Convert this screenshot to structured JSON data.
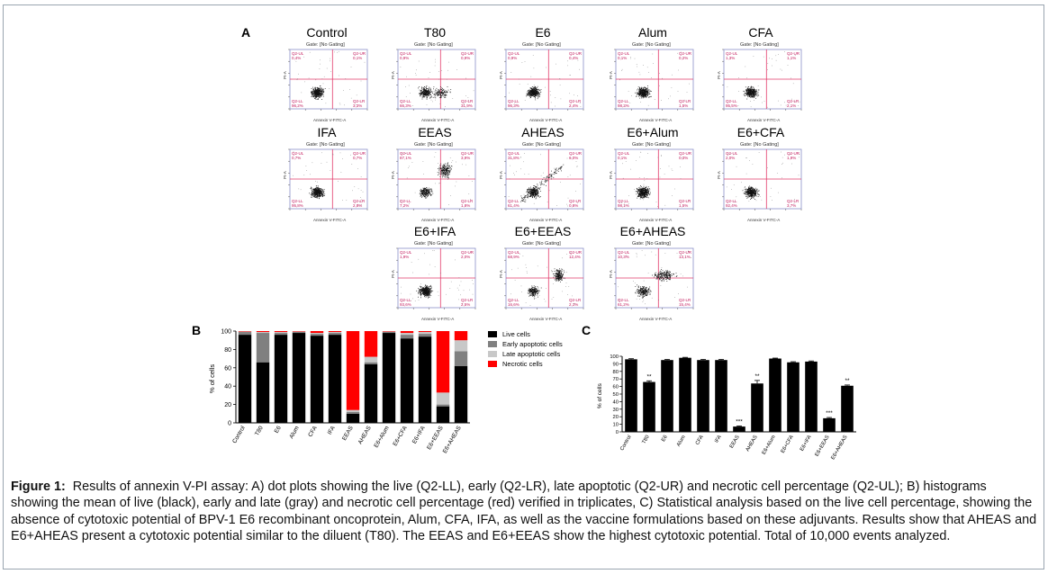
{
  "figure": {
    "panel_labels": {
      "a": "A",
      "b": "B",
      "c": "C"
    },
    "caption_lead": "Figure 1:",
    "caption_text": "Results of annexin V-PI assay: A) dot plots showing the live (Q2-LL), early (Q2-LR), late apoptotic (Q2-UR) and necrotic cell percentage (Q2-UL); B) histograms showing the mean of live (black), early and late (gray) and necrotic cell percentage (red) verified in triplicates, C) Statistical analysis based on the live cell percentage, showing the absence of cytotoxic potential of BPV-1 E6 recombinant oncoprotein, Alum, CFA, IFA, as well as the vaccine formulations based on these adjuvants. Results show that AHEAS and E6+AHEAS present a cytotoxic potential similar to the diluent (T80). The EEAS and E6+EEAS show the highest cytotoxic potential. Total of 10,000 events analyzed."
  },
  "dot_plots": [
    {
      "title": "Control",
      "gate": "Gate: [No Gating]",
      "xlabel": "Annexin V-FITC-A",
      "ylabel": "PI-A",
      "ul": "0,4%",
      "ur": "0,1%",
      "ll": "96,2%",
      "lr": "3,3%",
      "spread": 0
    },
    {
      "title": "T80",
      "gate": "Gate: [No Gating]",
      "xlabel": "Annexin V-FITC-A",
      "ylabel": "PI-A",
      "ul": "0,9%",
      "ur": "0,9%",
      "ll": "66,3%",
      "lr": "31,9%",
      "spread": 1
    },
    {
      "title": "E6",
      "gate": "Gate: [No Gating]",
      "xlabel": "Annexin V-FITC-A",
      "ylabel": "PI-A",
      "ul": "0,9%",
      "ur": "0,4%",
      "ll": "96,3%",
      "lr": "2,4%",
      "spread": 0
    },
    {
      "title": "Alum",
      "gate": "Gate: [No Gating]",
      "xlabel": "Annexin V-FITC-A",
      "ylabel": "PI-A",
      "ul": "0,1%",
      "ur": "0,2%",
      "ll": "98,2%",
      "lr": "1,5%",
      "spread": 0
    },
    {
      "title": "CFA",
      "gate": "Gate: [No Gating]",
      "xlabel": "Annexin V-FITC-A",
      "ylabel": "PI-A",
      "ul": "1,3%",
      "ur": "1,1%",
      "ll": "95,5%",
      "lr": "2,1%",
      "spread": 0
    },
    {
      "title": "IFA",
      "gate": "Gate: [No Gating]",
      "xlabel": "Annexin V-FITC-A",
      "ylabel": "PI-A",
      "ul": "0,7%",
      "ur": "0,7%",
      "ll": "95,8%",
      "lr": "2,8%",
      "spread": 0
    },
    {
      "title": "EEAS",
      "gate": "Gate: [No Gating]",
      "xlabel": "Annexin V-FITC-A",
      "ylabel": "PI-A",
      "ul": "87,1%",
      "ur": "3,9%",
      "ll": "7,2%",
      "lr": "1,8%",
      "spread": 2
    },
    {
      "title": "AHEAS",
      "gate": "Gate: [No Gating]",
      "xlabel": "Annexin V-FITC-A",
      "ylabel": "PI-A",
      "ul": "31,8%",
      "ur": "6,0%",
      "ll": "61,4%",
      "lr": "0,8%",
      "spread": 3
    },
    {
      "title": "E6+Alum",
      "gate": "Gate: [No Gating]",
      "xlabel": "Annexin V-FITC-A",
      "ylabel": "PI-A",
      "ul": "0,1%",
      "ur": "0,3%",
      "ll": "98,1%",
      "lr": "1,5%",
      "spread": 0
    },
    {
      "title": "E6+CFA",
      "gate": "Gate: [No Gating]",
      "xlabel": "Annexin V-FITC-A",
      "ylabel": "PI-A",
      "ul": "2,0%",
      "ur": "1,9%",
      "ll": "92,4%",
      "lr": "3,7%",
      "spread": 0
    },
    {
      "title": "E6+IFA",
      "gate": "Gate: [No Gating]",
      "xlabel": "Annexin V-FITC-A",
      "ylabel": "PI-A",
      "ul": "1,9%",
      "ur": "2,0%",
      "ll": "93,6%",
      "lr": "2,5%",
      "spread": 0
    },
    {
      "title": "E6+EEAS",
      "gate": "Gate: [No Gating]",
      "xlabel": "Annexin V-FITC-A",
      "ylabel": "PI-A",
      "ul": "68,9%",
      "ur": "12,4%",
      "ll": "16,6%",
      "lr": "2,1%",
      "spread": 4
    },
    {
      "title": "E6+AHEAS",
      "gate": "Gate: [No Gating]",
      "xlabel": "Annexin V-FITC-A",
      "ylabel": "PI-A",
      "ul": "10,3%",
      "ur": "13,1%",
      "ll": "61,2%",
      "lr": "15,4%",
      "spread": 5
    }
  ],
  "chart_data": [
    {
      "type": "bar",
      "stacked": true,
      "panel": "B",
      "ylabel": "% of cells",
      "ylim": [
        0,
        100
      ],
      "yticks": [
        0,
        20,
        40,
        60,
        80,
        100
      ],
      "categories": [
        "Control",
        "T80",
        "E6",
        "Alum",
        "CFA",
        "IFA",
        "EEAS",
        "AHEAS",
        "E6+Alum",
        "E6+CFA",
        "E6+IFA",
        "E6+EEAS",
        "E6+AHEAS"
      ],
      "series": [
        {
          "name": "Live cells",
          "color": "#000000",
          "values": [
            96,
            66,
            96,
            98,
            95,
            96,
            10,
            64,
            98,
            92,
            94,
            18,
            62
          ]
        },
        {
          "name": "Early apoptotic cells",
          "color": "#808080",
          "values": [
            3,
            32,
            2,
            1,
            2,
            2,
            2,
            2,
            1,
            4,
            3,
            2,
            16
          ]
        },
        {
          "name": "Late apoptotic cells",
          "color": "#c8c8c8",
          "values": [
            0.5,
            1,
            1,
            0.5,
            1,
            1,
            2,
            6,
            0.5,
            2,
            2,
            13,
            12
          ]
        },
        {
          "name": "Necrotic cells",
          "color": "#ff0000",
          "values": [
            0.5,
            1,
            1,
            0.5,
            2,
            1,
            86,
            28,
            0.5,
            2,
            1,
            67,
            10
          ]
        }
      ],
      "legend_position": "right"
    },
    {
      "type": "bar",
      "panel": "C",
      "ylabel": "% of cells",
      "ylim": [
        0,
        100
      ],
      "yticks": [
        0,
        10,
        20,
        30,
        40,
        50,
        60,
        70,
        80,
        90,
        100
      ],
      "categories": [
        "Control",
        "T80",
        "E6",
        "Alum",
        "CFA",
        "IFA",
        "EEAS",
        "AHEAS",
        "E6+Alum",
        "E6+CFA",
        "E6+IFA",
        "E6+EEAS",
        "E6+AHEAS"
      ],
      "values": [
        96,
        66,
        95,
        98,
        95,
        95,
        7,
        64,
        97,
        92,
        93,
        18,
        61
      ],
      "errors": [
        0.8,
        1.5,
        0.8,
        0.6,
        0.8,
        0.8,
        0.8,
        4,
        0.6,
        0.8,
        0.8,
        1,
        1
      ],
      "significance": [
        "",
        "**",
        "",
        "",
        "",
        "",
        "***",
        "**",
        "",
        "",
        "",
        "***",
        "**"
      ]
    }
  ]
}
